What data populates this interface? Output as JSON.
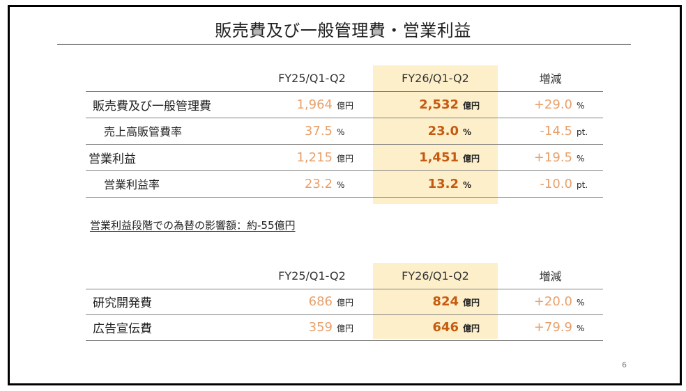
{
  "page": {
    "title": "販売費及び一般管理費・営業利益",
    "page_number": "6",
    "highlight_color": "#fdefca",
    "accent_color": "#c55a11",
    "light_accent_color": "#e8a06a"
  },
  "table1": {
    "headers": [
      "FY25/Q1-Q2",
      "FY26/Q1-Q2",
      "増減"
    ],
    "rows": [
      {
        "label": "販売費及び一般管理費",
        "fy25": "1,964",
        "fy25_unit": "億円",
        "fy26": "2,532",
        "fy26_unit": "億円",
        "change": "+29.0",
        "change_unit": "%"
      },
      {
        "label": "売上高販管費率",
        "fy25": "37.5",
        "fy25_unit": "%",
        "fy26": "23.0",
        "fy26_unit": "%",
        "change": "-14.5",
        "change_unit": "pt."
      },
      {
        "label": "営業利益",
        "fy25": "1,215",
        "fy25_unit": "億円",
        "fy26": "1,451",
        "fy26_unit": "億円",
        "change": "+19.5",
        "change_unit": "%"
      },
      {
        "label": "営業利益率",
        "fy25": "23.2",
        "fy25_unit": "%",
        "fy26": "13.2",
        "fy26_unit": "%",
        "change": "-10.0",
        "change_unit": "pt."
      }
    ]
  },
  "note": "営業利益段階での為替の影響額：約-55億円",
  "table2": {
    "headers": [
      "FY25/Q1-Q2",
      "FY26/Q1-Q2",
      "増減"
    ],
    "rows": [
      {
        "label": "研究開発費",
        "fy25": "686",
        "fy25_unit": "億円",
        "fy26": "824",
        "fy26_unit": "億円",
        "change": "+20.0",
        "change_unit": "%"
      },
      {
        "label": "広告宣伝費",
        "fy25": "359",
        "fy25_unit": "億円",
        "fy26": "646",
        "fy26_unit": "億円",
        "change": "+79.9",
        "change_unit": "%"
      }
    ]
  }
}
